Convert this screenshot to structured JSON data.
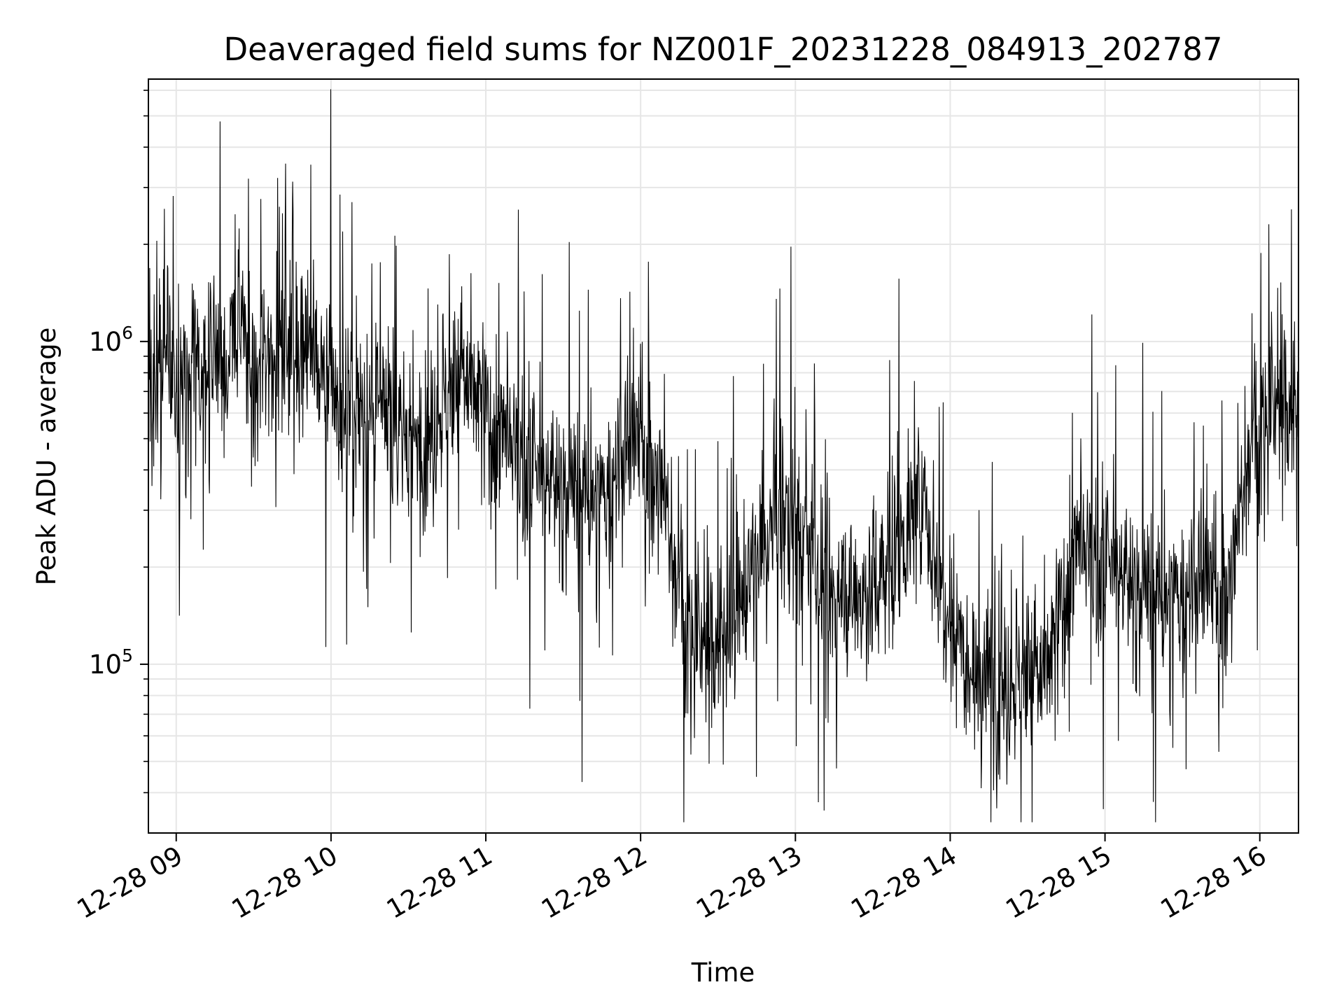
{
  "chart_data": {
    "type": "line",
    "title": "Deaveraged field sums for NZ001F_20231228_084913_202787",
    "xlabel": "Time",
    "ylabel": "Peak ADU - average",
    "x_start": "2023-12-28T08:49:13",
    "x_end": "2023-12-28T16:15:00",
    "xlim": [
      "2023-12-28T08:49:13",
      "2023-12-28T16:15:00"
    ],
    "ylim": [
      30000,
      6500000
    ],
    "y_scale": "log",
    "grid": true,
    "line_color": "#000000",
    "grid_color": "#e6e6e6",
    "x_ticks": [
      {
        "value": "2023-12-28T09:00:00",
        "label": "12-28 09"
      },
      {
        "value": "2023-12-28T10:00:00",
        "label": "12-28 10"
      },
      {
        "value": "2023-12-28T11:00:00",
        "label": "12-28 11"
      },
      {
        "value": "2023-12-28T12:00:00",
        "label": "12-28 12"
      },
      {
        "value": "2023-12-28T13:00:00",
        "label": "12-28 13"
      },
      {
        "value": "2023-12-28T14:00:00",
        "label": "12-28 14"
      },
      {
        "value": "2023-12-28T15:00:00",
        "label": "12-28 15"
      },
      {
        "value": "2023-12-28T16:00:00",
        "label": "12-28 16"
      }
    ],
    "y_ticks": [
      {
        "value": 100000,
        "base": "10",
        "exp": "5"
      },
      {
        "value": 1000000,
        "base": "10",
        "exp": "6"
      }
    ],
    "series": [
      {
        "values": [
          [
            "2023-12-28T08:50:00",
            600000
          ],
          [
            "2023-12-28T08:55:00",
            950000
          ],
          [
            "2023-12-28T09:00:00",
            700000
          ],
          [
            "2023-12-28T09:05:00",
            850000
          ],
          [
            "2023-12-28T09:10:00",
            800000
          ],
          [
            "2023-12-28T09:15:00",
            1000000
          ],
          [
            "2023-12-28T09:20:00",
            900000
          ],
          [
            "2023-12-28T09:25:00",
            1050000
          ],
          [
            "2023-12-28T09:30:00",
            700000
          ],
          [
            "2023-12-28T09:35:00",
            950000
          ],
          [
            "2023-12-28T09:40:00",
            1000000
          ],
          [
            "2023-12-28T09:45:00",
            1100000
          ],
          [
            "2023-12-28T09:50:00",
            1000000
          ],
          [
            "2023-12-28T09:55:00",
            800000
          ],
          [
            "2023-12-28T10:00:00",
            700000
          ],
          [
            "2023-12-28T10:05:00",
            600000
          ],
          [
            "2023-12-28T10:10:00",
            650000
          ],
          [
            "2023-12-28T10:15:00",
            550000
          ],
          [
            "2023-12-28T10:20:00",
            600000
          ],
          [
            "2023-12-28T10:25:00",
            550000
          ],
          [
            "2023-12-28T10:30:00",
            500000
          ],
          [
            "2023-12-28T10:35:00",
            500000
          ],
          [
            "2023-12-28T10:40:00",
            550000
          ],
          [
            "2023-12-28T10:45:00",
            700000
          ],
          [
            "2023-12-28T10:50:00",
            800000
          ],
          [
            "2023-12-28T10:55:00",
            700000
          ],
          [
            "2023-12-28T11:00:00",
            600000
          ],
          [
            "2023-12-28T11:05:00",
            500000
          ],
          [
            "2023-12-28T11:10:00",
            450000
          ],
          [
            "2023-12-28T11:15:00",
            400000
          ],
          [
            "2023-12-28T11:20:00",
            380000
          ],
          [
            "2023-12-28T11:25:00",
            380000
          ],
          [
            "2023-12-28T11:30:00",
            360000
          ],
          [
            "2023-12-28T11:35:00",
            340000
          ],
          [
            "2023-12-28T11:40:00",
            320000
          ],
          [
            "2023-12-28T11:45:00",
            310000
          ],
          [
            "2023-12-28T11:50:00",
            380000
          ],
          [
            "2023-12-28T11:55:00",
            450000
          ],
          [
            "2023-12-28T12:00:00",
            500000
          ],
          [
            "2023-12-28T12:05:00",
            400000
          ],
          [
            "2023-12-28T12:10:00",
            300000
          ],
          [
            "2023-12-28T12:15:00",
            170000
          ],
          [
            "2023-12-28T12:20:00",
            120000
          ],
          [
            "2023-12-28T12:25:00",
            110000
          ],
          [
            "2023-12-28T12:30:00",
            120000
          ],
          [
            "2023-12-28T12:35:00",
            140000
          ],
          [
            "2023-12-28T12:40:00",
            170000
          ],
          [
            "2023-12-28T12:45:00",
            200000
          ],
          [
            "2023-12-28T12:50:00",
            250000
          ],
          [
            "2023-12-28T12:55:00",
            300000
          ],
          [
            "2023-12-28T13:00:00",
            280000
          ],
          [
            "2023-12-28T13:05:00",
            220000
          ],
          [
            "2023-12-28T13:10:00",
            180000
          ],
          [
            "2023-12-28T13:15:00",
            160000
          ],
          [
            "2023-12-28T13:20:00",
            170000
          ],
          [
            "2023-12-28T13:25:00",
            160000
          ],
          [
            "2023-12-28T13:30:00",
            170000
          ],
          [
            "2023-12-28T13:35:00",
            200000
          ],
          [
            "2023-12-28T13:40:00",
            230000
          ],
          [
            "2023-12-28T13:45:00",
            280000
          ],
          [
            "2023-12-28T13:50:00",
            300000
          ],
          [
            "2023-12-28T13:55:00",
            200000
          ],
          [
            "2023-12-28T14:00:00",
            150000
          ],
          [
            "2023-12-28T14:05:00",
            120000
          ],
          [
            "2023-12-28T14:10:00",
            100000
          ],
          [
            "2023-12-28T14:15:00",
            90000
          ],
          [
            "2023-12-28T14:20:00",
            85000
          ],
          [
            "2023-12-28T14:25:00",
            90000
          ],
          [
            "2023-12-28T14:30:00",
            100000
          ],
          [
            "2023-12-28T14:35:00",
            90000
          ],
          [
            "2023-12-28T14:40:00",
            110000
          ],
          [
            "2023-12-28T14:45:00",
            180000
          ],
          [
            "2023-12-28T14:50:00",
            220000
          ],
          [
            "2023-12-28T14:55:00",
            200000
          ],
          [
            "2023-12-28T15:00:00",
            190000
          ],
          [
            "2023-12-28T15:05:00",
            200000
          ],
          [
            "2023-12-28T15:10:00",
            180000
          ],
          [
            "2023-12-28T15:15:00",
            170000
          ],
          [
            "2023-12-28T15:20:00",
            160000
          ],
          [
            "2023-12-28T15:25:00",
            150000
          ],
          [
            "2023-12-28T15:30:00",
            160000
          ],
          [
            "2023-12-28T15:35:00",
            170000
          ],
          [
            "2023-12-28T15:40:00",
            180000
          ],
          [
            "2023-12-28T15:45:00",
            160000
          ],
          [
            "2023-12-28T15:50:00",
            200000
          ],
          [
            "2023-12-28T15:55:00",
            450000
          ],
          [
            "2023-12-28T16:00:00",
            550000
          ],
          [
            "2023-12-28T16:05:00",
            600000
          ],
          [
            "2023-12-28T16:10:00",
            650000
          ],
          [
            "2023-12-28T16:15:00",
            600000
          ]
        ]
      }
    ]
  }
}
